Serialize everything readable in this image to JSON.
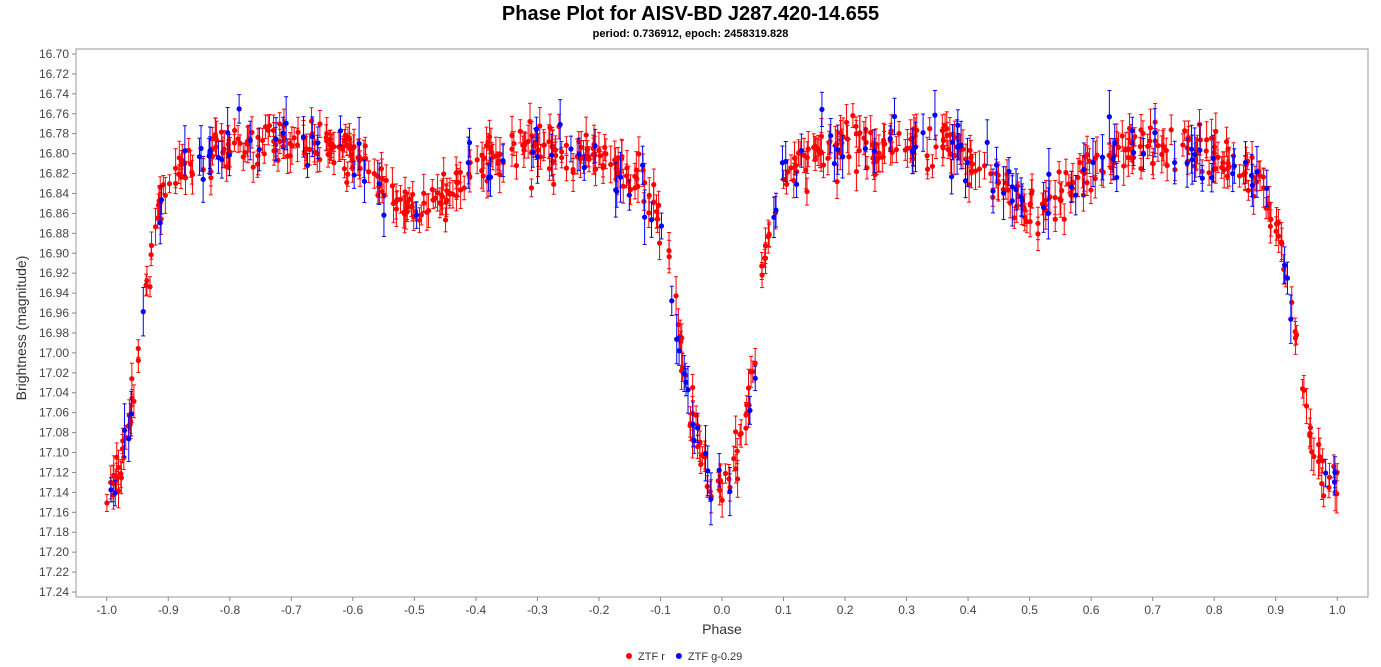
{
  "chart_data": {
    "type": "scatter",
    "title": "Phase Plot for AISV-BD J287.420-14.655",
    "subtitle": "period: 0.736912, epoch: 2458319.828",
    "xlabel": "Phase",
    "ylabel": "Brightness (magnitude)",
    "xlim": [
      -1.05,
      1.05
    ],
    "ylim": [
      16.695,
      17.245
    ],
    "y_inverted": true,
    "grid": false,
    "legend_position": "bottom-center",
    "x_ticks": [
      "-1.0",
      "-0.9",
      "-0.8",
      "-0.7",
      "-0.6",
      "-0.5",
      "-0.4",
      "-0.3",
      "-0.2",
      "-0.1",
      "0.0",
      "0.1",
      "0.2",
      "0.3",
      "0.4",
      "0.5",
      "0.6",
      "0.7",
      "0.8",
      "0.9",
      "1.0"
    ],
    "y_ticks": [
      "16.70",
      "16.72",
      "16.74",
      "16.76",
      "16.78",
      "16.80",
      "16.82",
      "16.84",
      "16.86",
      "16.88",
      "16.90",
      "16.92",
      "16.94",
      "16.96",
      "16.98",
      "17.00",
      "17.02",
      "17.04",
      "17.06",
      "17.08",
      "17.10",
      "17.12",
      "17.14",
      "17.16",
      "17.18",
      "17.20",
      "17.22",
      "17.24"
    ],
    "light_curve": {
      "phase": [
        0.0,
        0.02,
        0.04,
        0.055,
        0.07,
        0.085,
        0.1,
        0.13,
        0.16,
        0.2,
        0.25,
        0.3,
        0.35,
        0.4,
        0.45,
        0.5,
        0.55,
        0.6,
        0.65,
        0.7,
        0.75,
        0.8,
        0.85,
        0.88,
        0.9,
        0.915,
        0.93,
        0.945,
        0.96,
        0.98,
        1.0
      ],
      "magnitude": [
        17.14,
        17.12,
        17.06,
        16.99,
        16.91,
        16.86,
        16.83,
        16.81,
        16.8,
        16.79,
        16.79,
        16.79,
        16.785,
        16.8,
        16.83,
        16.86,
        16.84,
        16.81,
        16.8,
        16.795,
        16.8,
        16.805,
        16.82,
        16.84,
        16.87,
        16.91,
        16.98,
        17.04,
        17.09,
        17.13,
        17.14
      ]
    },
    "series": [
      {
        "name": "ZTF r",
        "color": "#ff0000",
        "n_points": 700,
        "scatter": 0.011,
        "error": 0.014
      },
      {
        "name": "ZTF g-0.29",
        "color": "#0000ff",
        "n_points": 150,
        "scatter": 0.015,
        "error": 0.02
      }
    ]
  }
}
